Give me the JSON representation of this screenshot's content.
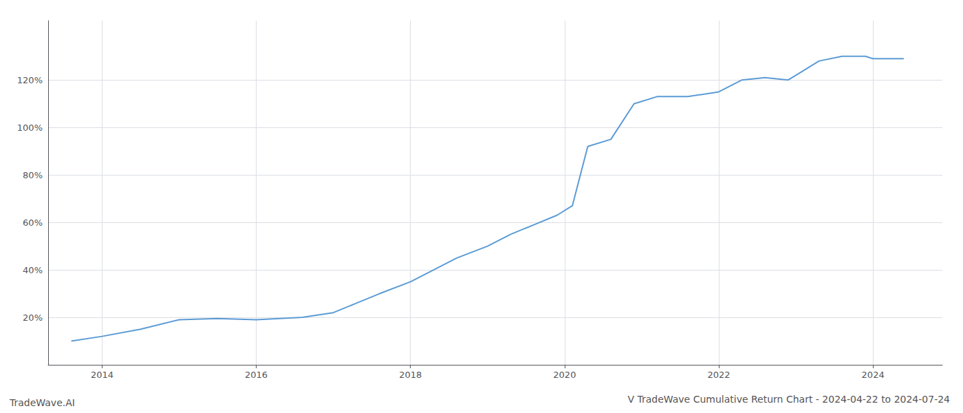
{
  "chart_data": {
    "type": "line",
    "title": "V TradeWave Cumulative Return Chart - 2024-04-22 to 2024-07-24",
    "annotations": [
      "TradeWave.AI"
    ],
    "x": [
      2013.6,
      2014.0,
      2014.5,
      2015.0,
      2015.5,
      2016.0,
      2016.3,
      2016.6,
      2017.0,
      2017.3,
      2017.6,
      2018.0,
      2018.3,
      2018.6,
      2019.0,
      2019.3,
      2019.6,
      2019.9,
      2020.1,
      2020.3,
      2020.6,
      2020.9,
      2021.2,
      2021.6,
      2022.0,
      2022.3,
      2022.6,
      2022.9,
      2023.0,
      2023.3,
      2023.6,
      2023.9,
      2024.0,
      2024.4
    ],
    "values": [
      10,
      12,
      15,
      19,
      19.5,
      19,
      19.5,
      20,
      22,
      26,
      30,
      35,
      40,
      45,
      50,
      55,
      59,
      63,
      67,
      92,
      95,
      110,
      113,
      113,
      115,
      120,
      121,
      120,
      122,
      128,
      130,
      130,
      129,
      129
    ],
    "color": "#5b9bd5",
    "xlim": [
      2013.3,
      2024.9
    ],
    "xticks": [
      2014,
      2016,
      2018,
      2020,
      2022,
      2024
    ],
    "ylim": [
      0,
      145
    ],
    "yticks": [
      {
        "value": 20,
        "label": "20%"
      },
      {
        "value": 40,
        "label": "40%"
      },
      {
        "value": 60,
        "label": "60%"
      },
      {
        "value": 80,
        "label": "80%"
      },
      {
        "value": 100,
        "label": "100%"
      },
      {
        "value": 120,
        "label": "120%"
      }
    ],
    "grid": true
  }
}
